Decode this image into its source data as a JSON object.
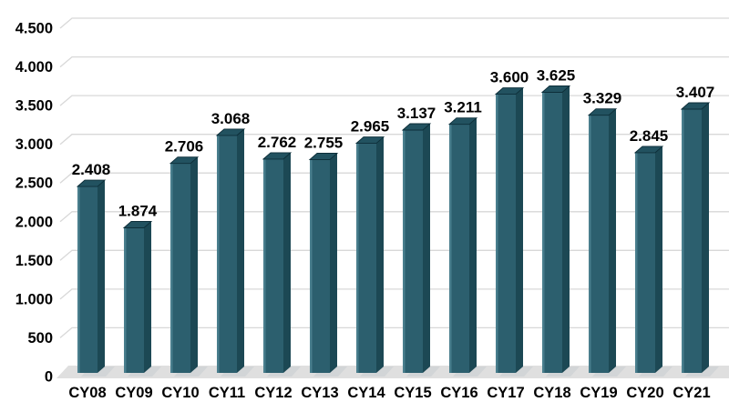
{
  "chart_data": {
    "type": "bar",
    "style": "3d-column",
    "title": "",
    "xlabel": "",
    "ylabel": "",
    "categories": [
      "CY08",
      "CY09",
      "CY10",
      "CY11",
      "CY12",
      "CY13",
      "CY14",
      "CY15",
      "CY16",
      "CY17",
      "CY18",
      "CY19",
      "CY20",
      "CY21"
    ],
    "values": [
      2408,
      1874,
      2706,
      3068,
      2762,
      2755,
      2965,
      3137,
      3211,
      3600,
      3625,
      3329,
      2845,
      3407
    ],
    "value_labels": [
      "2.408",
      "1.874",
      "2.706",
      "3.068",
      "2.762",
      "2.755",
      "2.965",
      "3.137",
      "3.211",
      "3.600",
      "3.625",
      "3.329",
      "2.845",
      "3.407"
    ],
    "y_ticks": [
      {
        "value": 0,
        "label": "0"
      },
      {
        "value": 500,
        "label": "500"
      },
      {
        "value": 1000,
        "label": "1.000"
      },
      {
        "value": 1500,
        "label": "1.500"
      },
      {
        "value": 2000,
        "label": "2.000"
      },
      {
        "value": 2500,
        "label": "2.500"
      },
      {
        "value": 3000,
        "label": "3.000"
      },
      {
        "value": 3500,
        "label": "3.500"
      },
      {
        "value": 4000,
        "label": "4.000"
      },
      {
        "value": 4500,
        "label": "4.500"
      }
    ],
    "ylim": [
      0,
      4500
    ],
    "grid": true,
    "legend": "none",
    "colors": {
      "bar_front": "#2c5f6e",
      "bar_front_highlight": "#4d8290",
      "bar_side": "#1c4854",
      "bar_top": "#225260",
      "bar_outline": "#0d2e39",
      "gridline": "#d8d8d8",
      "floor": "#dfdfdf",
      "floor_shadow": "#c6cccf",
      "text": "#000000",
      "background": "#ffffff"
    }
  }
}
